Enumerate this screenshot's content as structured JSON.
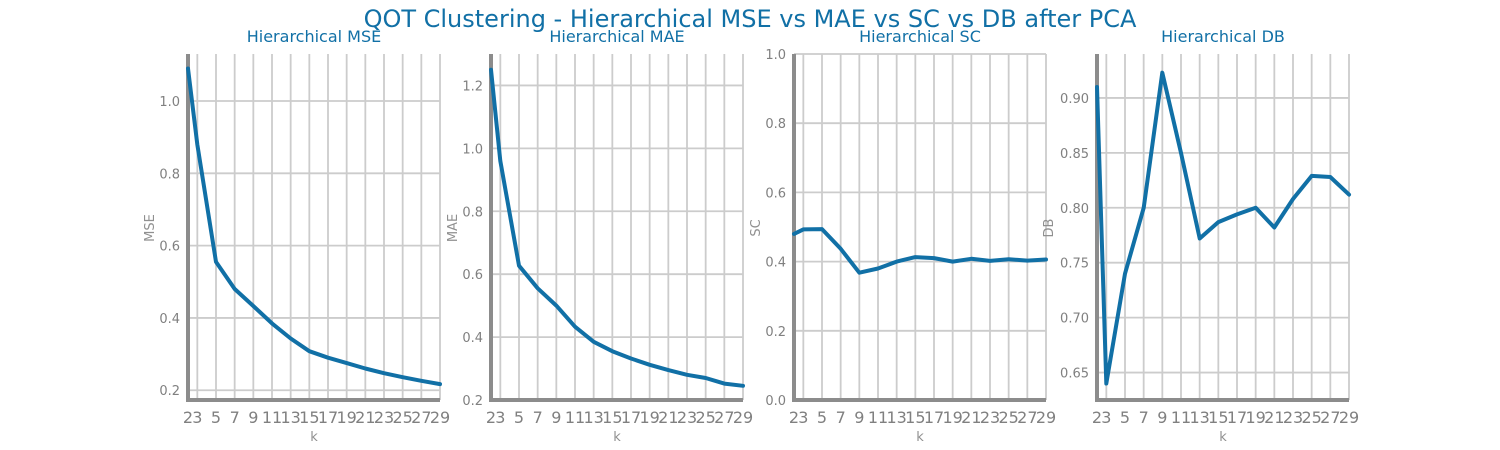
{
  "figure": {
    "title": "QOT Clustering - Hierarchical MSE vs MAE vs SC vs DB after PCA"
  },
  "colors": {
    "title": "#1170a6",
    "line": "#1170a6",
    "grid": "#cccccc",
    "axis": "#8c8c8c",
    "tick_text": "#808080"
  },
  "chart_data": [
    {
      "type": "line",
      "title": "Hierarchical MSE",
      "xlabel": "k",
      "ylabel": "MSE",
      "x": [
        2,
        3,
        5,
        7,
        9,
        11,
        13,
        15,
        17,
        19,
        21,
        23,
        25,
        27,
        29
      ],
      "y": [
        1.09,
        0.88,
        0.555,
        0.48,
        0.433,
        0.385,
        0.343,
        0.308,
        0.29,
        0.275,
        0.26,
        0.247,
        0.236,
        0.226,
        0.217
      ],
      "xlim": [
        2,
        29
      ],
      "ylim": [
        0.173,
        1.13
      ],
      "yticks": [
        0.2,
        0.4,
        0.6,
        0.8,
        1.0
      ],
      "ytick_labels": [
        "0.2",
        "0.4",
        "0.6",
        "0.8",
        "1.0"
      ],
      "xtick_labels": [
        "2",
        "3",
        "5",
        "7",
        "9",
        "11",
        "13",
        "15",
        "17",
        "19",
        "21",
        "23",
        "25",
        "27",
        "29"
      ],
      "grid": true
    },
    {
      "type": "line",
      "title": "Hierarchical MAE",
      "xlabel": "k",
      "ylabel": "MAE",
      "x": [
        2,
        3,
        5,
        7,
        9,
        11,
        13,
        15,
        17,
        19,
        21,
        23,
        25,
        27,
        29
      ],
      "y": [
        1.25,
        0.96,
        0.627,
        0.555,
        0.5,
        0.433,
        0.385,
        0.355,
        0.332,
        0.312,
        0.295,
        0.28,
        0.27,
        0.252,
        0.245
      ],
      "xlim": [
        2,
        29
      ],
      "ylim": [
        0.2,
        1.3
      ],
      "yticks": [
        0.2,
        0.4,
        0.6,
        0.8,
        1.0,
        1.2
      ],
      "ytick_labels": [
        "0.2",
        "0.4",
        "0.6",
        "0.8",
        "1.0",
        "1.2"
      ],
      "xtick_labels": [
        "2",
        "3",
        "5",
        "7",
        "9",
        "11",
        "13",
        "15",
        "17",
        "19",
        "21",
        "23",
        "25",
        "27",
        "29"
      ],
      "grid": true
    },
    {
      "type": "line",
      "title": "Hierarchical SC",
      "xlabel": "k",
      "ylabel": "SC",
      "x": [
        2,
        3,
        5,
        7,
        9,
        11,
        13,
        15,
        17,
        19,
        21,
        23,
        25,
        27,
        29
      ],
      "y": [
        0.48,
        0.493,
        0.494,
        0.437,
        0.368,
        0.38,
        0.4,
        0.413,
        0.41,
        0.4,
        0.408,
        0.402,
        0.407,
        0.403,
        0.406
      ],
      "xlim": [
        2,
        29
      ],
      "ylim": [
        0.0,
        1.0
      ],
      "yticks": [
        0.0,
        0.2,
        0.4,
        0.6,
        0.8,
        1.0
      ],
      "ytick_labels": [
        "0.0",
        "0.2",
        "0.4",
        "0.6",
        "0.8",
        "1.0"
      ],
      "xtick_labels": [
        "2",
        "3",
        "5",
        "7",
        "9",
        "11",
        "13",
        "15",
        "17",
        "19",
        "21",
        "23",
        "25",
        "27",
        "29"
      ],
      "grid": true
    },
    {
      "type": "line",
      "title": "Hierarchical DB",
      "xlabel": "k",
      "ylabel": "DB",
      "x": [
        2,
        3,
        5,
        7,
        9,
        11,
        13,
        15,
        17,
        19,
        21,
        23,
        25,
        27,
        29
      ],
      "y": [
        0.91,
        0.64,
        0.74,
        0.8,
        0.923,
        0.85,
        0.772,
        0.787,
        0.794,
        0.8,
        0.782,
        0.808,
        0.829,
        0.828,
        0.812
      ],
      "xlim": [
        2,
        29
      ],
      "ylim": [
        0.625,
        0.94
      ],
      "yticks": [
        0.65,
        0.7,
        0.75,
        0.8,
        0.85,
        0.9
      ],
      "ytick_labels": [
        "0.65",
        "0.70",
        "0.75",
        "0.80",
        "0.85",
        "0.90"
      ],
      "xtick_labels": [
        "2",
        "3",
        "5",
        "7",
        "9",
        "11",
        "13",
        "15",
        "17",
        "19",
        "21",
        "23",
        "25",
        "27",
        "29"
      ],
      "grid": true
    }
  ]
}
